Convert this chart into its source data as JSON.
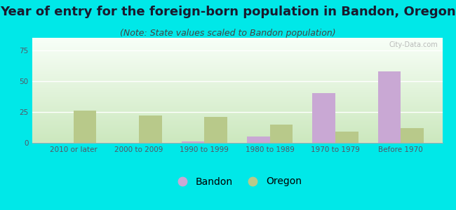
{
  "title": "Year of entry for the foreign-born population in Bandon, Oregon",
  "subtitle": "(Note: State values scaled to Bandon population)",
  "categories": [
    "2010 or later",
    "2000 to 2009",
    "1990 to 1999",
    "1980 to 1989",
    "1970 to 1979",
    "Before 1970"
  ],
  "bandon_values": [
    0,
    0,
    1,
    5,
    40,
    58
  ],
  "oregon_values": [
    26,
    22,
    21,
    15,
    9,
    12
  ],
  "bandon_color": "#c9a8d4",
  "oregon_color": "#b8c98a",
  "background_outer": "#00e8e8",
  "background_inner_top": "#f5fff5",
  "background_inner_bottom": "#d8eec8",
  "ylim": [
    0,
    85
  ],
  "yticks": [
    0,
    25,
    50,
    75
  ],
  "bar_width": 0.35,
  "legend_labels": [
    "Bandon",
    "Oregon"
  ],
  "title_fontsize": 13,
  "subtitle_fontsize": 9,
  "tick_fontsize": 7.5,
  "legend_fontsize": 10,
  "title_color": "#1a1a2e",
  "subtitle_color": "#444444",
  "tick_color": "#555566"
}
